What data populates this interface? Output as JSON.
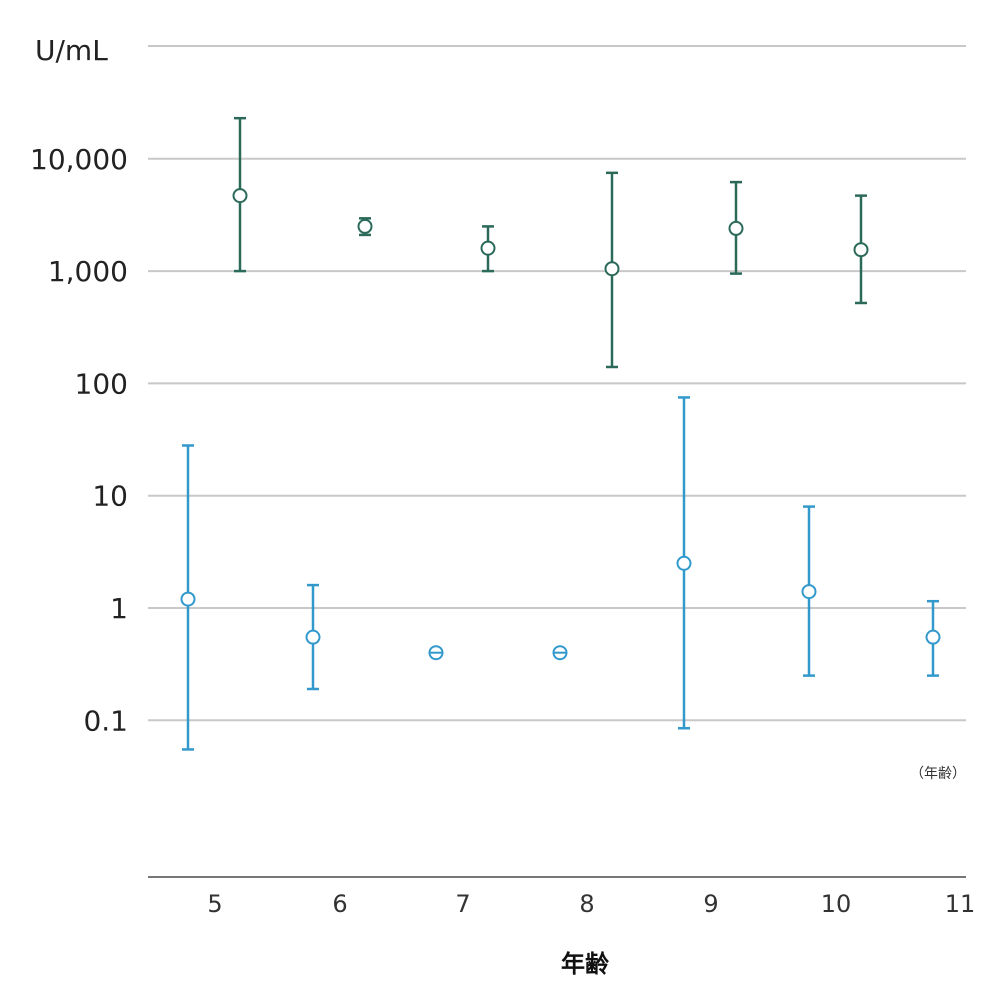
{
  "chart_data": {
    "type": "scatter",
    "y_unit": "U/mL",
    "y_scale": "log",
    "ylim": [
      0.01,
      100000
    ],
    "y_ticks": [
      "10,000",
      "1,000",
      "100",
      "10",
      "1",
      "0.1"
    ],
    "y_tick_values": [
      10000,
      1000,
      100,
      10,
      1,
      0.1
    ],
    "x_categories": [
      "5",
      "6",
      "7",
      "8",
      "9",
      "10",
      "11"
    ],
    "xlabel": "年齢",
    "x_unit": "（年齢）",
    "grid": true,
    "series": [
      {
        "color": "#2b6a59",
        "points": [
          {
            "x": 5,
            "y": 4700,
            "low": 1000,
            "high": 23000
          },
          {
            "x": 6,
            "y": 2500,
            "low": 2100,
            "high": 2950
          },
          {
            "x": 7,
            "y": 1600,
            "low": 1000,
            "high": 2500
          },
          {
            "x": 8,
            "y": 1050,
            "low": 140,
            "high": 7500
          },
          {
            "x": 9,
            "y": 2400,
            "low": 950,
            "high": 6200
          },
          {
            "x": 10,
            "y": 1550,
            "low": 520,
            "high": 4700
          }
        ]
      },
      {
        "color": "#3399cc",
        "points": [
          {
            "x": 5,
            "y": 1.2,
            "low": 0.055,
            "high": 28
          },
          {
            "x": 6,
            "y": 0.55,
            "low": 0.19,
            "high": 1.6
          },
          {
            "x": 7,
            "y": 0.4,
            "low": 0.4,
            "high": 0.4
          },
          {
            "x": 8,
            "y": 0.4,
            "low": 0.4,
            "high": 0.4
          },
          {
            "x": 9,
            "y": 2.5,
            "low": 0.085,
            "high": 75
          },
          {
            "x": 10,
            "y": 1.4,
            "low": 0.25,
            "high": 8
          },
          {
            "x": 11,
            "y": 0.55,
            "low": 0.25,
            "high": 1.15
          }
        ]
      }
    ]
  }
}
